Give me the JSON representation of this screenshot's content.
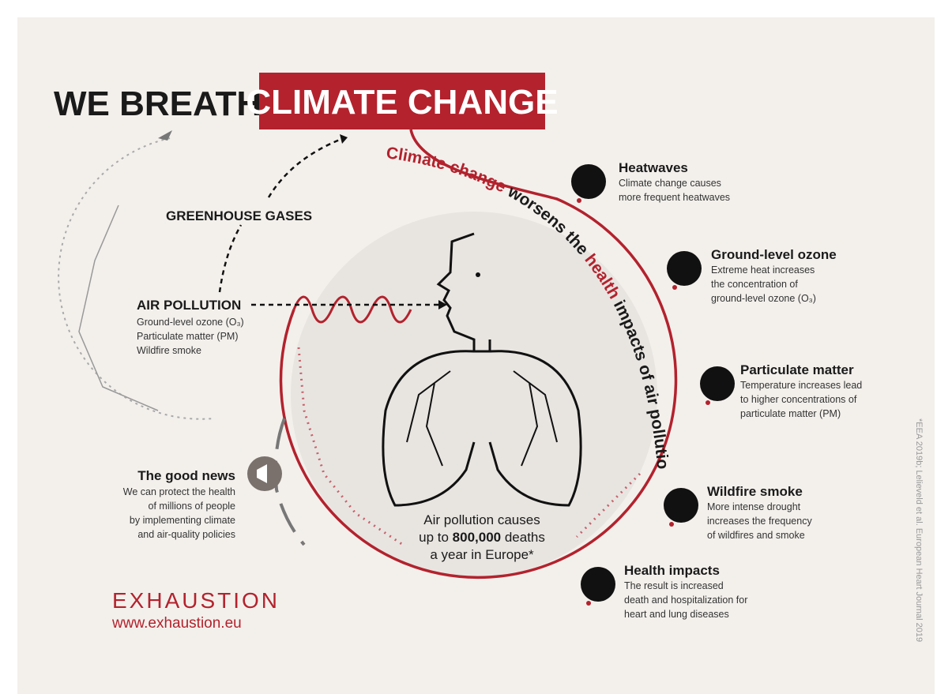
{
  "header": {
    "title": "WE BREATHE",
    "highlight": "CLIMATE CHANGE"
  },
  "greenhouse_gases": "GREENHOUSE GASES",
  "air_pollution": {
    "title": "AIR POLLUTION",
    "items": [
      "Ground-level ozone (O₃)",
      "Particulate matter (PM)",
      "Wildfire smoke"
    ]
  },
  "arc_text": [
    "Climate change",
    " worsens the ",
    "health",
    " impacts of air pollution"
  ],
  "impacts": [
    {
      "title": "Heatwaves",
      "lines": [
        "Climate change causes",
        "more frequent heatwaves"
      ]
    },
    {
      "title": "Ground-level ozone",
      "lines": [
        "Extreme heat increases",
        "the concentration of",
        "ground-level ozone (O₃)"
      ]
    },
    {
      "title": "Particulate matter",
      "lines": [
        "Temperature increases lead",
        "to higher concentrations of",
        "particulate matter (PM)"
      ]
    },
    {
      "title": "Wildfire smoke",
      "lines": [
        "More intense drought",
        "increases the frequency",
        "of wildfires and smoke"
      ]
    },
    {
      "title": "Health impacts",
      "lines": [
        "The result is increased",
        "death and hospitalization for",
        "heart and lung diseases"
      ]
    }
  ],
  "good_news": {
    "title": "The good news",
    "lines": [
      "We can protect the health",
      "of millions of people",
      "by implementing climate",
      "and air-quality policies"
    ]
  },
  "center": {
    "line1": "Air pollution causes",
    "line2_pre": "up to ",
    "line2_number": "800,000",
    "line2_post": " deaths",
    "line3": "a year in Europe*"
  },
  "brand": {
    "name": "EXHAUSTION",
    "url": "www.exhaustion.eu"
  },
  "footnote": "*EEA 2019b; Lelieveld et al. European Heart Journal 2019"
}
